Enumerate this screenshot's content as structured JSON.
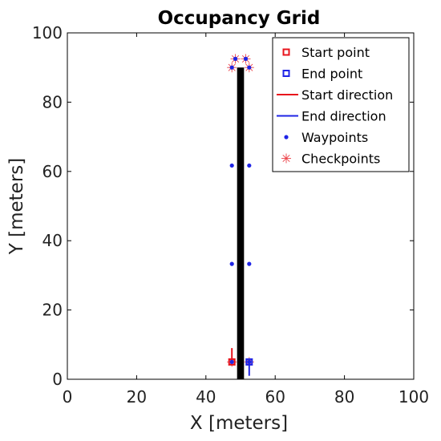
{
  "chart_data": {
    "type": "scatter",
    "title": "Occupancy Grid",
    "xlabel": "X [meters]",
    "ylabel": "Y [meters]",
    "xlim": [
      0,
      100
    ],
    "ylim": [
      0,
      100
    ],
    "xticks": [
      "0",
      "20",
      "40",
      "60",
      "80",
      "100"
    ],
    "yticks": [
      "0",
      "20",
      "40",
      "60",
      "80",
      "100"
    ],
    "grid": false,
    "legend_position": "top-right",
    "obstacle": {
      "x_range": [
        49,
        51
      ],
      "y_range": [
        0,
        90
      ],
      "color": "#000000"
    },
    "series": [
      {
        "name": "Start point",
        "marker": "square",
        "color": "#e8141c",
        "points": [
          [
            47.5,
            5
          ]
        ]
      },
      {
        "name": "End point",
        "marker": "square",
        "color": "#1f24e6",
        "points": [
          [
            52.5,
            5
          ]
        ]
      },
      {
        "name": "Start direction",
        "marker": "line",
        "color": "#e8141c",
        "segments": [
          [
            [
              47.5,
              5
            ],
            [
              47.5,
              9
            ]
          ]
        ]
      },
      {
        "name": "End direction",
        "marker": "line",
        "color": "#1f24e6",
        "segments": [
          [
            [
              52.5,
              5
            ],
            [
              52.5,
              1
            ]
          ]
        ]
      },
      {
        "name": "Waypoints",
        "marker": "dot",
        "color": "#1f24e6",
        "points": [
          [
            47.5,
            5
          ],
          [
            47.5,
            33.3
          ],
          [
            47.5,
            61.7
          ],
          [
            47.5,
            90
          ],
          [
            48.5,
            92.5
          ],
          [
            51.5,
            92.5
          ],
          [
            52.5,
            90
          ],
          [
            52.5,
            61.7
          ],
          [
            52.5,
            33.3
          ],
          [
            52.5,
            5
          ]
        ]
      },
      {
        "name": "Checkpoints",
        "marker": "asterisk",
        "color": "#e8141c",
        "points": [
          [
            47.5,
            5
          ],
          [
            47.5,
            90
          ],
          [
            48.5,
            92.5
          ],
          [
            51.5,
            92.5
          ],
          [
            52.5,
            90
          ],
          [
            52.5,
            5
          ]
        ]
      }
    ]
  }
}
